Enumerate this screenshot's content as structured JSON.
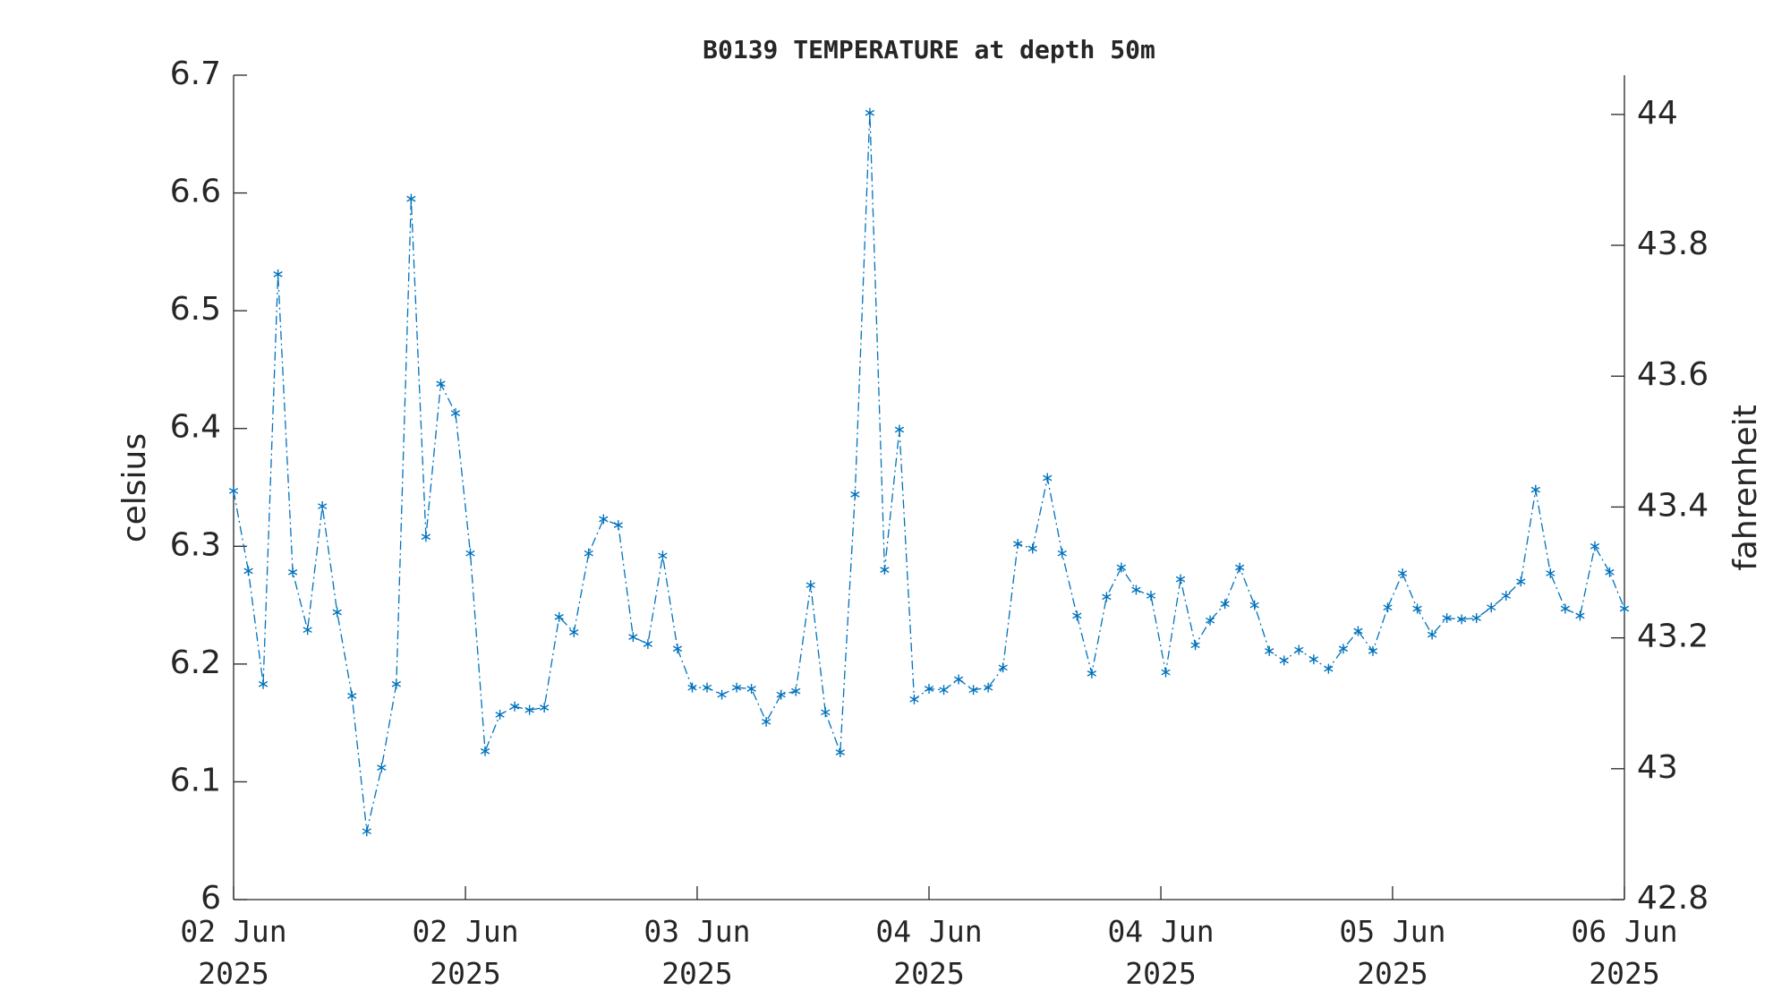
{
  "chart_data": {
    "type": "line",
    "title": "B0139 TEMPERATURE at depth 50m",
    "ylabel": "celsius",
    "y2label": "fahrenheit",
    "x": [
      0,
      1,
      2,
      3,
      4,
      5,
      6,
      7,
      8,
      9,
      10,
      11,
      12,
      13,
      14,
      15,
      16,
      17,
      18,
      19,
      20,
      21,
      22,
      23,
      24,
      25,
      26,
      27,
      28,
      29,
      30,
      31,
      32,
      33,
      34,
      35,
      36,
      37,
      38,
      39,
      40,
      41,
      42,
      43,
      44,
      45,
      46,
      47,
      48,
      49,
      50,
      51,
      52,
      53,
      54,
      55,
      56,
      57,
      58,
      59,
      60,
      61,
      62,
      63,
      64,
      65,
      66,
      67,
      68,
      69,
      70,
      71,
      72,
      73,
      74,
      75,
      76,
      77,
      78,
      79,
      80,
      81,
      82,
      83,
      84,
      85,
      86,
      87,
      88,
      89,
      90,
      91,
      92,
      93,
      94
    ],
    "series": [
      {
        "name": "celsius",
        "color": "#0072bd",
        "values": [
          6.347,
          6.279,
          6.183,
          6.531,
          6.278,
          6.229,
          6.334,
          6.244,
          6.173,
          6.058,
          6.112,
          6.183,
          6.595,
          6.308,
          6.438,
          6.413,
          6.294,
          6.126,
          6.157,
          6.164,
          6.161,
          6.163,
          6.24,
          6.227,
          6.294,
          6.323,
          6.318,
          6.223,
          6.217,
          6.292,
          6.213,
          6.18,
          6.18,
          6.174,
          6.18,
          6.179,
          6.151,
          6.174,
          6.177,
          6.267,
          6.159,
          6.125,
          6.344,
          6.668,
          6.28,
          6.399,
          6.17,
          6.179,
          6.178,
          6.187,
          6.178,
          6.18,
          6.197,
          6.302,
          6.298,
          6.358,
          6.294,
          6.241,
          6.192,
          6.257,
          6.282,
          6.263,
          6.258,
          6.193,
          6.272,
          6.216,
          6.237,
          6.251,
          6.282,
          6.25,
          6.211,
          6.203,
          6.212,
          6.204,
          6.196,
          6.213,
          6.228,
          6.211,
          6.248,
          6.277,
          6.247,
          6.225,
          6.239,
          6.238,
          6.239,
          6.248,
          6.258,
          6.27,
          6.348,
          6.277,
          6.247,
          6.241,
          6.3,
          6.278,
          6.247
        ]
      }
    ],
    "xlim": [
      0,
      94
    ],
    "xticks": [
      {
        "value": 0,
        "label": "02 Jun\n2025"
      },
      {
        "value": 15.67,
        "label": "02 Jun\n2025"
      },
      {
        "value": 31.33,
        "label": "03 Jun\n2025"
      },
      {
        "value": 47,
        "label": "04 Jun\n2025"
      },
      {
        "value": 62.67,
        "label": "04 Jun\n2025"
      },
      {
        "value": 78.33,
        "label": "05 Jun\n2025"
      },
      {
        "value": 94,
        "label": "06 Jun\n2025"
      }
    ],
    "ylim": [
      6,
      6.7
    ],
    "yticks": [
      6,
      6.1,
      6.2,
      6.3,
      6.4,
      6.5,
      6.6,
      6.7
    ],
    "y2lim": [
      42.8,
      44.06
    ],
    "y2ticks": [
      42.8,
      43,
      43.2,
      43.4,
      43.6,
      43.8,
      44
    ],
    "grid": false
  }
}
